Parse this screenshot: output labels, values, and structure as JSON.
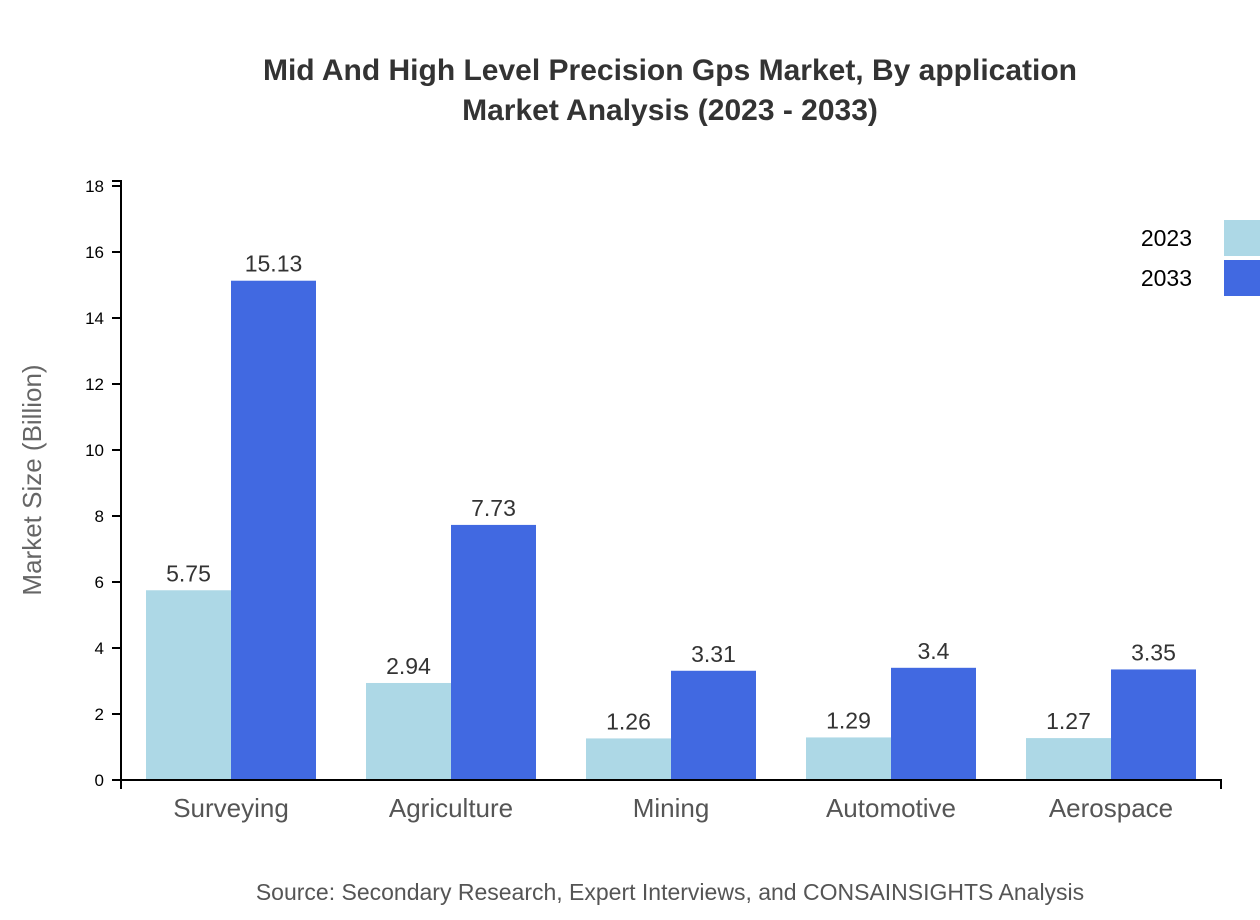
{
  "chart_data": {
    "type": "bar",
    "title": [
      "Mid And High Level Precision Gps Market, By application",
      "Market Analysis (2023 - 2033)"
    ],
    "xlabel": "",
    "ylabel": "Market Size (Billion)",
    "ylim": [
      0,
      18
    ],
    "yticks": [
      0,
      2,
      4,
      6,
      8,
      10,
      12,
      14,
      16,
      18
    ],
    "categories": [
      "Surveying",
      "Agriculture",
      "Mining",
      "Automotive",
      "Aerospace"
    ],
    "series": [
      {
        "name": "2023",
        "color": "#add8e6",
        "values": [
          5.75,
          2.94,
          1.26,
          1.29,
          1.27
        ]
      },
      {
        "name": "2033",
        "color": "#4169e1",
        "values": [
          15.13,
          7.73,
          3.31,
          3.4,
          3.35
        ]
      }
    ],
    "legend_position": "top-right",
    "grid": false,
    "source": "Source: Secondary Research, Expert Interviews, and CONSAINSIGHTS Analysis"
  }
}
